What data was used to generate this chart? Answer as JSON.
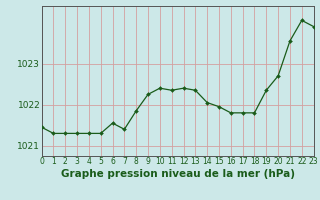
{
  "x": [
    0,
    1,
    2,
    3,
    4,
    5,
    6,
    7,
    8,
    9,
    10,
    11,
    12,
    13,
    14,
    15,
    16,
    17,
    18,
    19,
    20,
    21,
    22,
    23
  ],
  "y": [
    1021.45,
    1021.3,
    1021.3,
    1021.3,
    1021.3,
    1021.3,
    1021.55,
    1021.4,
    1021.85,
    1022.25,
    1022.4,
    1022.35,
    1022.4,
    1022.35,
    1022.05,
    1021.95,
    1021.8,
    1021.8,
    1021.8,
    1022.35,
    1022.7,
    1023.55,
    1024.05,
    1023.9
  ],
  "line_color": "#1a5c1a",
  "marker": "D",
  "marker_size": 2.0,
  "background_color": "#cce8e8",
  "grid_color": "#d4a0a0",
  "xlabel": "Graphe pression niveau de la mer (hPa)",
  "xlabel_fontsize": 7.5,
  "xlabel_color": "#1a5c1a",
  "yticks": [
    1021,
    1022,
    1023
  ],
  "ylim": [
    1020.75,
    1024.4
  ],
  "xlim": [
    0,
    23
  ],
  "xtick_labels": [
    "0",
    "1",
    "2",
    "3",
    "4",
    "5",
    "6",
    "7",
    "8",
    "9",
    "10",
    "11",
    "12",
    "13",
    "14",
    "15",
    "16",
    "17",
    "18",
    "19",
    "20",
    "21",
    "22",
    "23"
  ],
  "tick_color": "#1a5c1a",
  "ytick_fontsize": 6.5,
  "xtick_fontsize": 5.5,
  "axis_color": "#555555",
  "line_width": 0.9
}
